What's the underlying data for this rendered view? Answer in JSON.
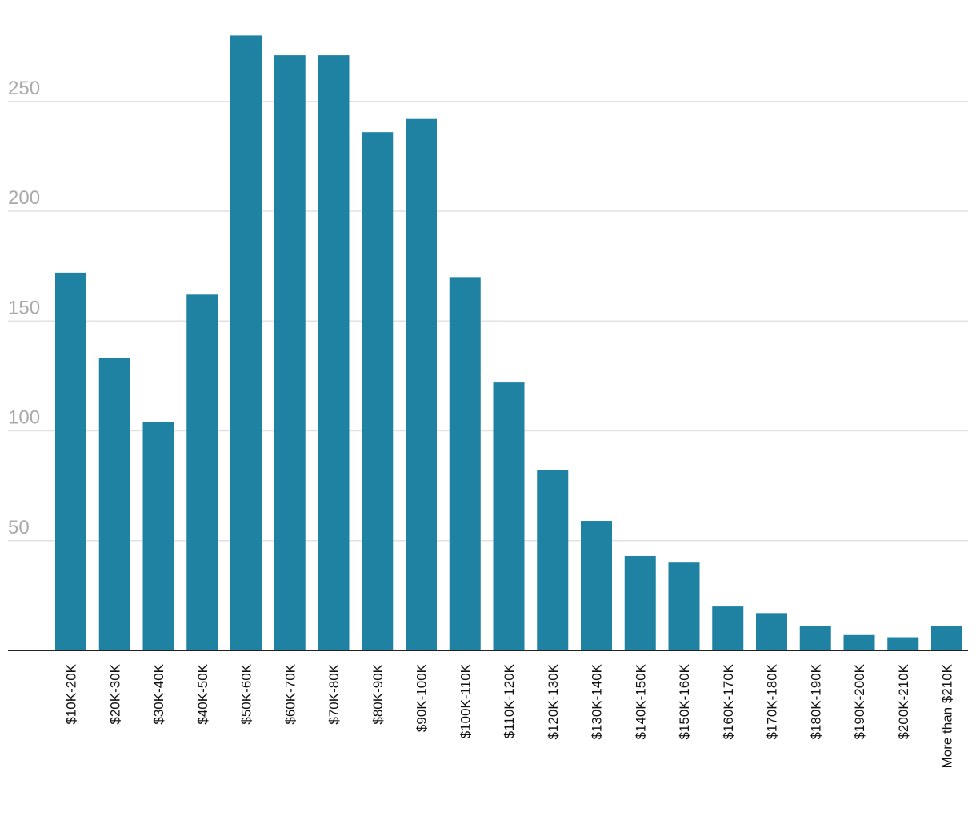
{
  "chart_data": {
    "type": "bar",
    "title": "",
    "xlabel": "",
    "ylabel": "",
    "ylim": [
      0,
      280
    ],
    "yticks": [
      50,
      100,
      150,
      200,
      250
    ],
    "grid": true,
    "bar_color": "#1f82a3",
    "categories": [
      "$10K-20K",
      "$20K-30K",
      "$30K-40K",
      "$40K-50K",
      "$50K-60K",
      "$60K-70K",
      "$70K-80K",
      "$80K-90K",
      "$90K-100K",
      "$100K-110K",
      "$110K-120K",
      "$120K-130K",
      "$130K-140K",
      "$140K-150K",
      "$150K-160K",
      "$160K-170K",
      "$170K-180K",
      "$180K-190K",
      "$190K-200K",
      "$200K-210K",
      "More than $210K"
    ],
    "values": [
      172,
      133,
      104,
      162,
      280,
      271,
      271,
      236,
      242,
      170,
      122,
      82,
      59,
      43,
      40,
      20,
      17,
      11,
      7,
      6,
      11
    ]
  }
}
